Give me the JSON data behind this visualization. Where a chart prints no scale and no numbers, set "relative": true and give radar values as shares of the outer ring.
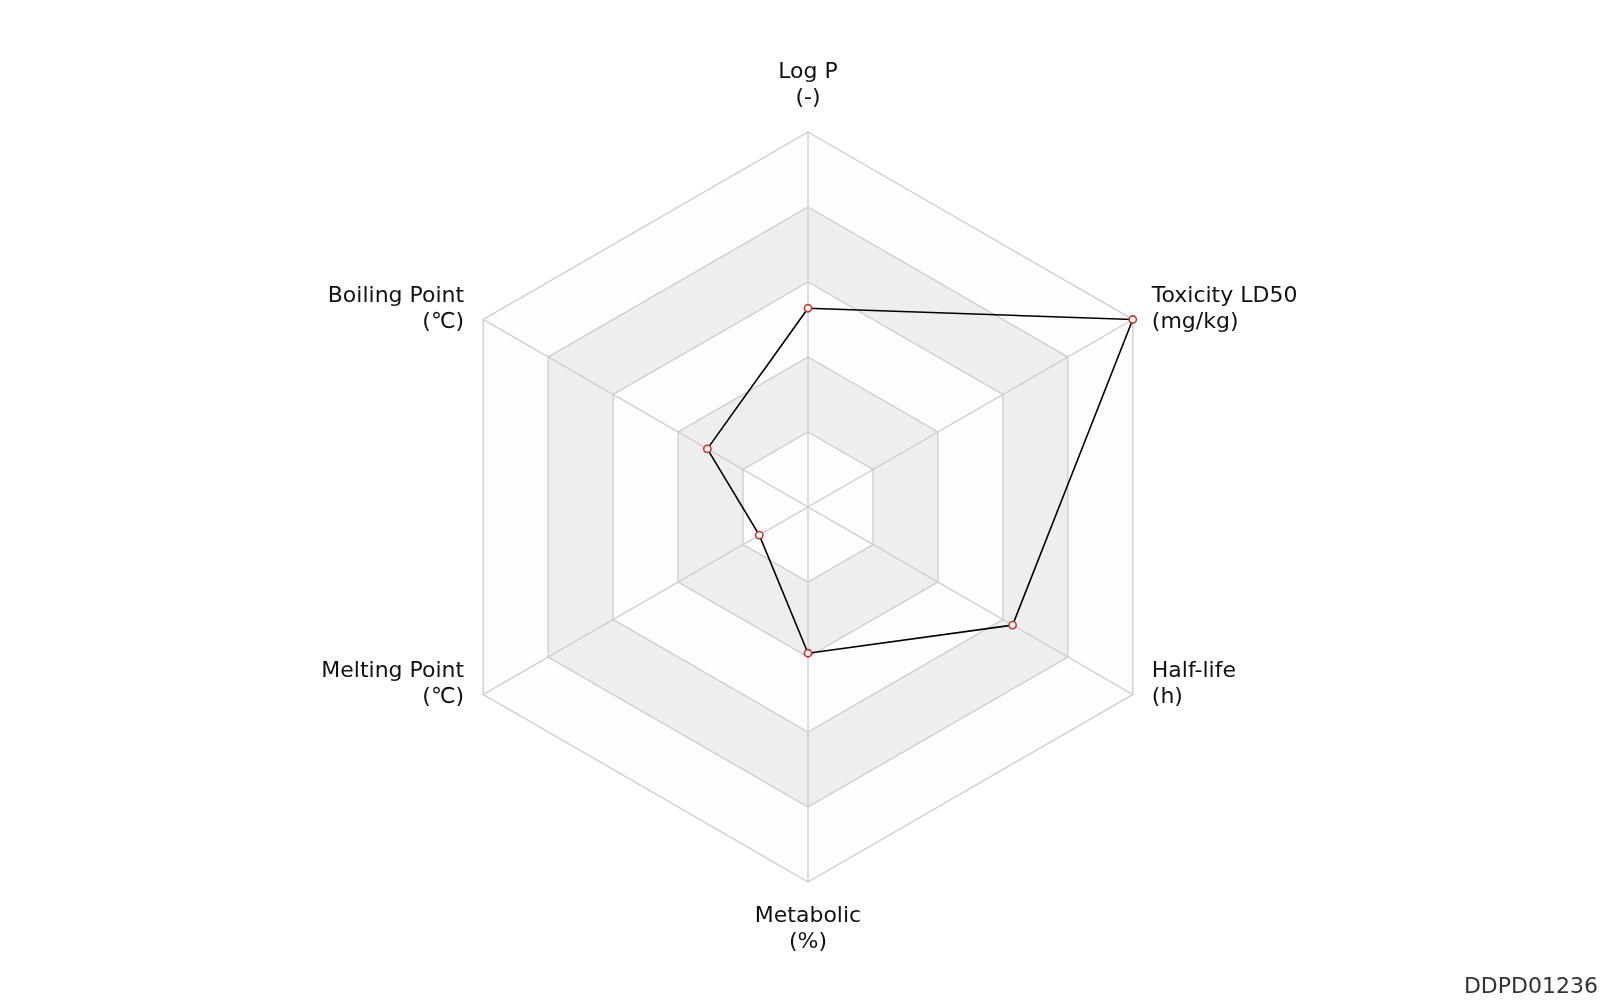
{
  "chart_data": {
    "type": "radar",
    "relative": true,
    "categories": [
      "Log P\n(-)",
      "Toxicity LD50\n(mg/kg)",
      "Half-life\n(h)",
      "Metabolic\n(%)",
      "Melting Point\n(℃)",
      "Boiling Point\n(℃)"
    ],
    "series": [
      {
        "color": "#000000",
        "values": [
          0.53,
          1.0,
          0.63,
          0.39,
          0.15,
          0.31
        ]
      }
    ],
    "marker": "circle",
    "grid": true,
    "annotations": [
      "DDPD01236"
    ]
  }
}
